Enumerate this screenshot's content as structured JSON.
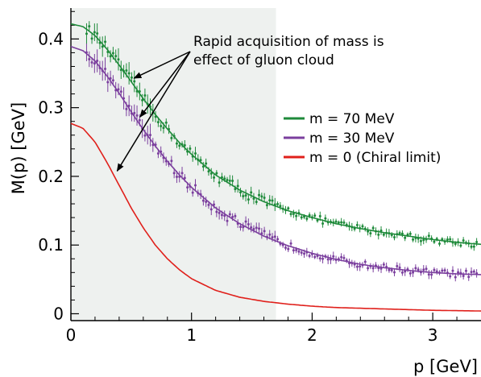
{
  "chart_data": {
    "type": "line",
    "xlabel": "p [GeV]",
    "ylabel": "M(p) [GeV]",
    "xlim": [
      0,
      3.4
    ],
    "ylim": [
      -0.01,
      0.445
    ],
    "x_ticks": [
      0,
      1,
      2,
      3
    ],
    "x_tick_labels": [
      "0",
      "1",
      "2",
      "3"
    ],
    "y_ticks": [
      0,
      0.1,
      0.2,
      0.3,
      0.4
    ],
    "y_tick_labels": [
      "0",
      "0.1",
      "0.2",
      "0.3",
      "0.4"
    ],
    "shaded_region_x": [
      0,
      1.7
    ],
    "legend_position": "right",
    "annotation": {
      "lines": [
        "Rapid acquisition of mass is",
        "effect of gluon cloud"
      ]
    },
    "series": [
      {
        "name": "m = 70 MeV",
        "color": "#1e8a3a",
        "curve_x": [
          0,
          0.1,
          0.2,
          0.3,
          0.4,
          0.5,
          0.6,
          0.7,
          0.8,
          0.9,
          1.0,
          1.2,
          1.4,
          1.6,
          1.8,
          2.0,
          2.2,
          2.4,
          2.6,
          2.8,
          3.0,
          3.2,
          3.4
        ],
        "curve_y": [
          0.422,
          0.418,
          0.405,
          0.385,
          0.362,
          0.338,
          0.313,
          0.29,
          0.269,
          0.249,
          0.232,
          0.202,
          0.18,
          0.163,
          0.15,
          0.14,
          0.131,
          0.124,
          0.118,
          0.113,
          0.108,
          0.104,
          0.101
        ]
      },
      {
        "name": "m = 30 MeV",
        "color": "#7b3f9e",
        "curve_x": [
          0,
          0.1,
          0.2,
          0.3,
          0.4,
          0.5,
          0.6,
          0.7,
          0.8,
          0.9,
          1.0,
          1.2,
          1.4,
          1.6,
          1.8,
          2.0,
          2.2,
          2.4,
          2.6,
          2.8,
          3.0,
          3.2,
          3.4
        ],
        "curve_y": [
          0.389,
          0.383,
          0.368,
          0.346,
          0.321,
          0.294,
          0.268,
          0.244,
          0.222,
          0.202,
          0.184,
          0.154,
          0.131,
          0.113,
          0.099,
          0.088,
          0.079,
          0.072,
          0.067,
          0.063,
          0.06,
          0.058,
          0.057
        ]
      },
      {
        "name": "m = 0 (Chiral limit)",
        "color": "#e0201b",
        "curve_x": [
          0,
          0.1,
          0.2,
          0.3,
          0.4,
          0.5,
          0.6,
          0.7,
          0.8,
          0.9,
          1.0,
          1.2,
          1.4,
          1.6,
          1.8,
          2.0,
          2.2,
          2.4,
          2.6,
          2.8,
          3.0,
          3.2,
          3.4
        ],
        "curve_y": [
          0.277,
          0.27,
          0.25,
          0.22,
          0.187,
          0.154,
          0.125,
          0.1,
          0.08,
          0.064,
          0.051,
          0.034,
          0.024,
          0.018,
          0.014,
          0.011,
          0.009,
          0.008,
          0.007,
          0.006,
          0.005,
          0.0045,
          0.004
        ]
      }
    ]
  }
}
